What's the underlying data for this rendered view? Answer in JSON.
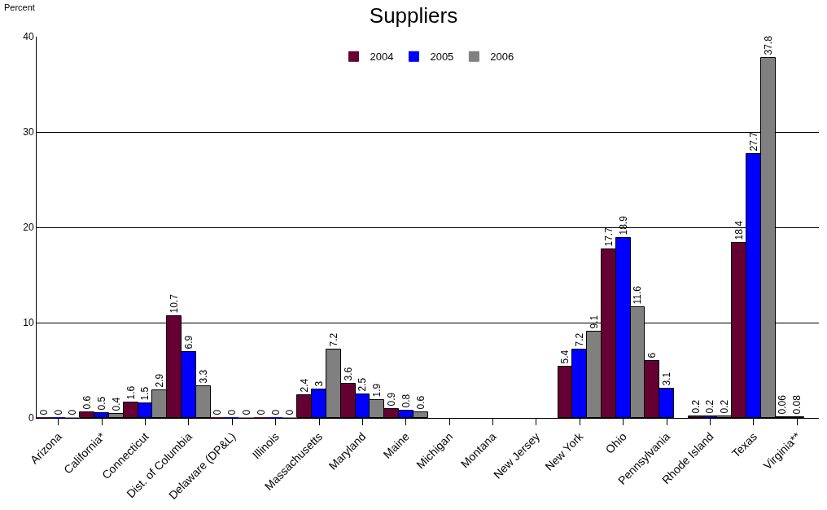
{
  "chart_data": {
    "type": "bar",
    "title": "Suppliers",
    "ylabel": "Percent",
    "categories": [
      "Arizona",
      "California*",
      "Connecticut",
      "Dist. of Columbia",
      "Delaware (DP&L)",
      "Illinois",
      "Massachusetts",
      "Maryland",
      "Maine",
      "Michigan",
      "Montana",
      "New Jersey",
      "New York",
      "Ohio",
      "Pennsylvania",
      "Rhode Island",
      "Texas",
      "Virginia**"
    ],
    "series": [
      {
        "name": "2004",
        "color": "#660033",
        "values": [
          0,
          0.6,
          1.6,
          10.7,
          0,
          0,
          2.4,
          3.6,
          0.9,
          null,
          null,
          null,
          5.4,
          17.7,
          6,
          0.2,
          18.4,
          0.06
        ]
      },
      {
        "name": "2005",
        "color": "#0000ff",
        "values": [
          0,
          0.5,
          1.5,
          6.9,
          0,
          0,
          3,
          2.5,
          0.8,
          null,
          null,
          null,
          7.2,
          18.9,
          3.1,
          0.2,
          27.7,
          0.08
        ]
      },
      {
        "name": "2006",
        "color": "#808080",
        "values": [
          0,
          0.4,
          2.9,
          3.3,
          0,
          0,
          7.2,
          1.9,
          0.6,
          null,
          null,
          null,
          9.1,
          11.6,
          null,
          0.2,
          37.8,
          null
        ]
      }
    ],
    "ylim": [
      0,
      40
    ],
    "yticks": [
      0,
      10,
      20,
      30,
      40
    ],
    "grid": "y",
    "legend": "top",
    "data_labels": true
  }
}
